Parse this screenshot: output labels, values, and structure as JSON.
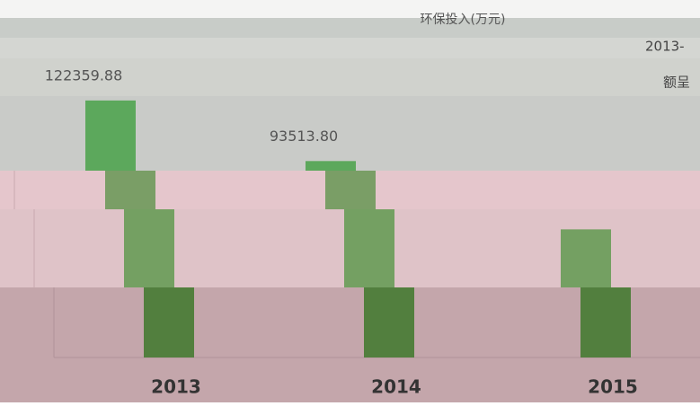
{
  "chart_data": {
    "type": "bar",
    "title": "环保投入(万元)",
    "annotations": [
      "2013-",
      "额呈"
    ],
    "categories": [
      "2013",
      "2014",
      "2015"
    ],
    "values": [
      122359.88,
      93513.8,
      61000
    ],
    "value_labels": [
      "122359.88",
      "93513.80",
      null
    ],
    "colors": [
      "#5ca85c",
      "#7a9e66",
      "#74a062",
      "#527f3e"
    ],
    "ylim": [
      0,
      130000
    ]
  }
}
